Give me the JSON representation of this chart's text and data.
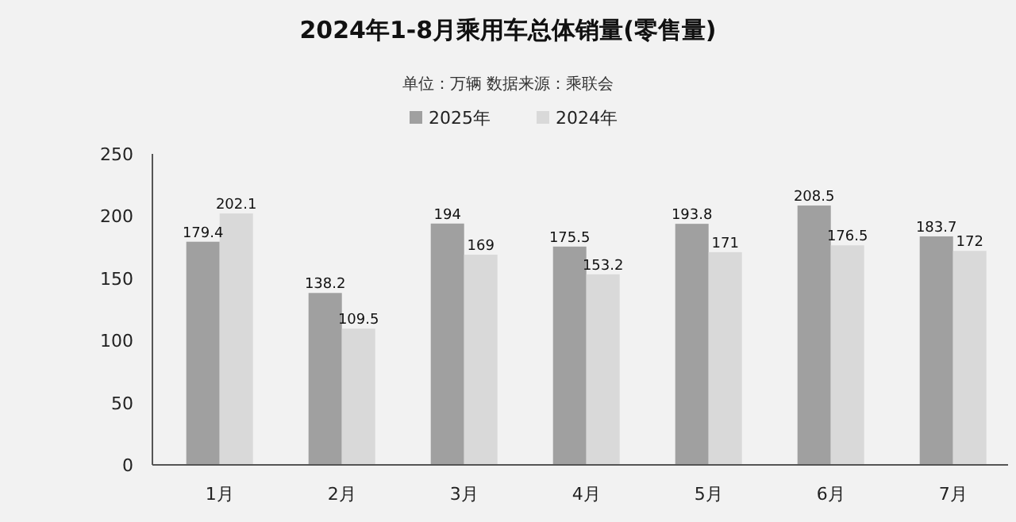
{
  "chart_data": {
    "type": "bar",
    "title": "2024年1-8月乘用车总体销量(零售量)",
    "subtitle": "单位：万辆  数据来源：乘联会",
    "categories": [
      "1月",
      "2月",
      "3月",
      "4月",
      "5月",
      "6月",
      "7月"
    ],
    "series": [
      {
        "name": "2025年",
        "color": "#a0a0a0",
        "values": [
          179.4,
          138.2,
          194,
          175.5,
          193.8,
          208.5,
          183.7
        ]
      },
      {
        "name": "2024年",
        "color": "#d9d9d9",
        "values": [
          202.1,
          109.5,
          169,
          153.2,
          171,
          176.5,
          172
        ]
      }
    ],
    "ylim": [
      0,
      250
    ],
    "yticks": [
      0,
      50,
      100,
      150,
      200,
      250
    ],
    "data_labels": true,
    "legend": "top",
    "grid": false
  }
}
